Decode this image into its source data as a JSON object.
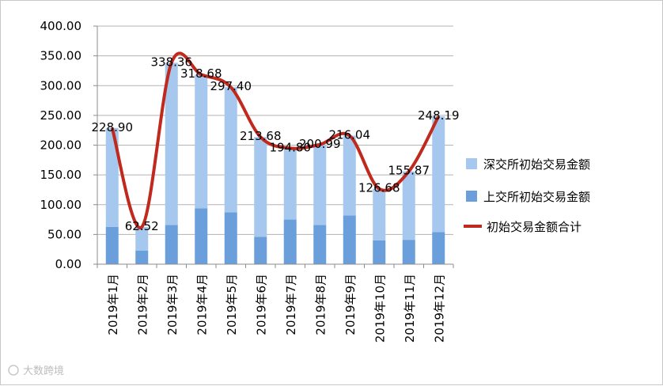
{
  "chart_data": {
    "type": "bar",
    "stacked": true,
    "categories": [
      "2019年1月",
      "2019年2月",
      "2019年3月",
      "2019年4月",
      "2019年5月",
      "2019年6月",
      "2019年7月",
      "2019年8月",
      "2019年9月",
      "2019年10月",
      "2019年11月",
      "2019年12月"
    ],
    "series": [
      {
        "name": "深交所初始交易金额",
        "type": "bar",
        "color": "#a6c8ee",
        "values": [
          166.4,
          39.5,
          272.4,
          224.7,
          210.4,
          167.7,
          119.8,
          135.0,
          134.0,
          86.7,
          114.9,
          194.2
        ]
      },
      {
        "name": "上交所初始交易金额",
        "type": "bar",
        "color": "#6a9fdc",
        "values": [
          62.5,
          23.0,
          66.0,
          94.0,
          87.0,
          46.0,
          75.0,
          66.0,
          82.0,
          40.0,
          41.0,
          54.0
        ]
      },
      {
        "name": "初始交易金额合计",
        "type": "line",
        "color": "#c0291d",
        "values": [
          228.9,
          62.52,
          338.36,
          318.68,
          297.4,
          213.68,
          194.8,
          200.99,
          216.04,
          126.68,
          155.87,
          248.19
        ]
      }
    ],
    "data_labels": [
      "228.90",
      "62.52",
      "338.36",
      "318.68",
      "297.40",
      "213.68",
      "194.80",
      "200.99",
      "216.04",
      "126.68",
      "155.87",
      "248.19"
    ],
    "y_ticks": [
      "0.00",
      "50.00",
      "100.00",
      "150.00",
      "200.00",
      "250.00",
      "300.00",
      "350.00",
      "400.00"
    ],
    "ylim": [
      0,
      400
    ],
    "grid": true,
    "legend_position": "right"
  },
  "watermark": "大数跨境"
}
